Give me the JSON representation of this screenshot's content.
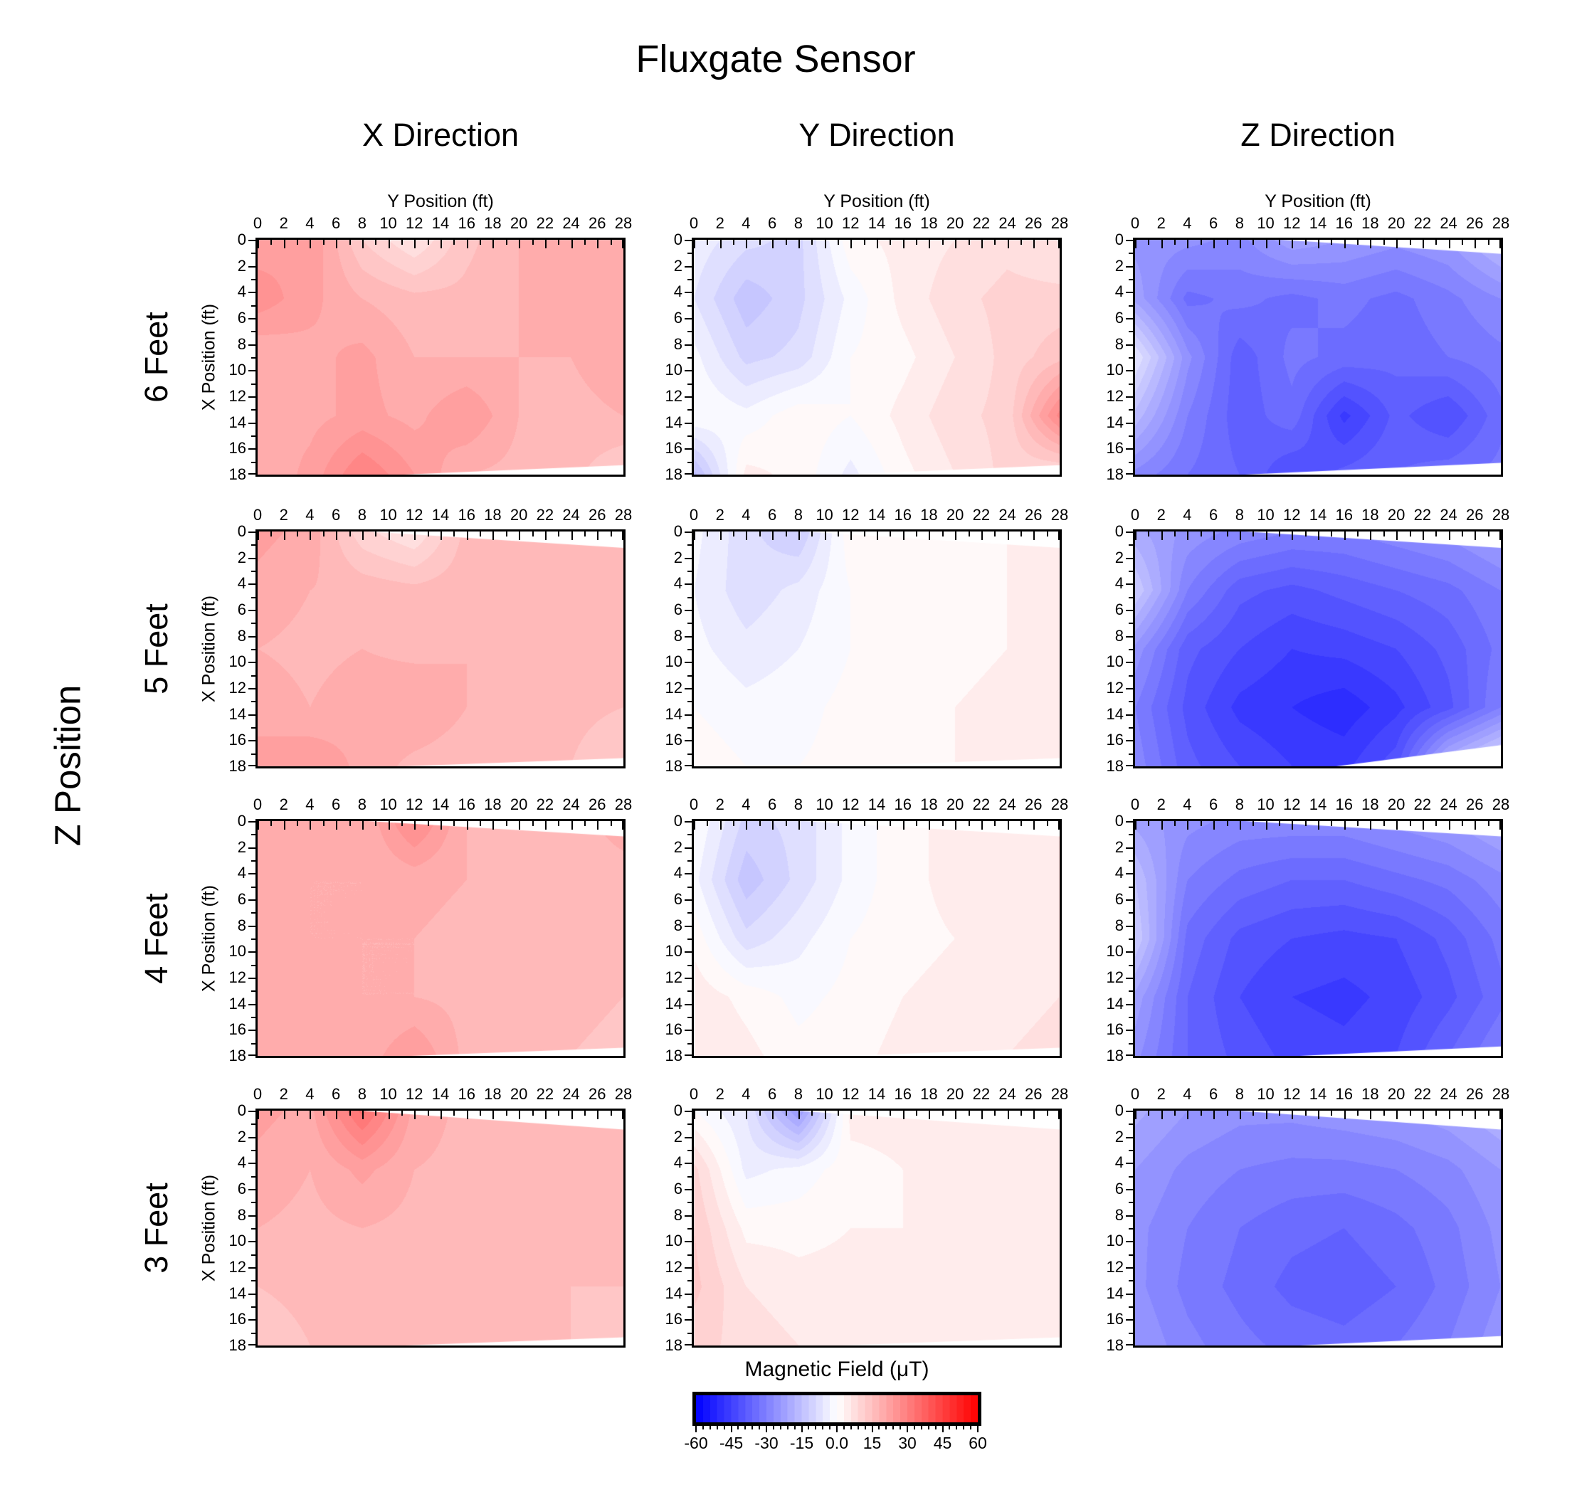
{
  "title": "Fluxgate Sensor",
  "column_headers": [
    "X Direction",
    "Y Direction",
    "Z Direction"
  ],
  "row_labels": [
    "6 Feet",
    "5 Feet",
    "4 Feet",
    "3 Feet"
  ],
  "z_axis_label": "Z Position",
  "top_axis": {
    "title": "Y Position (ft)",
    "tick_labels": [
      "0",
      "2",
      "4",
      "6",
      "8",
      "10",
      "12",
      "14",
      "16",
      "18",
      "20",
      "22",
      "24",
      "26",
      "28"
    ],
    "range": [
      0,
      28
    ],
    "minor_step_ft": 1
  },
  "left_axis": {
    "title": "X Position (ft)",
    "tick_labels": [
      "0",
      "2",
      "4",
      "6",
      "8",
      "10",
      "12",
      "14",
      "16",
      "18"
    ],
    "range": [
      0,
      18
    ],
    "minor_step_ft": 1
  },
  "colorbar": {
    "title": "Magnetic Field (μT)",
    "tick_labels": [
      "-60",
      "-45",
      "-30",
      "-15",
      "0.0",
      "15",
      "30",
      "45",
      "60"
    ],
    "tick_values": [
      -60,
      -45,
      -30,
      -15,
      0,
      15,
      30,
      45,
      60
    ],
    "range": [
      -60,
      60
    ],
    "band_step_uT": 3,
    "minor_tick_step_uT": 3,
    "colors": {
      "negative": "#0000ff",
      "zero": "#ffffff",
      "positive": "#ff0000"
    }
  },
  "chart_data": {
    "type": "heatmap",
    "value_units": "μT",
    "grid_y_positions_ft": [
      0,
      4,
      8,
      12,
      16,
      20,
      24,
      28
    ],
    "grid_x_positions_ft": [
      0,
      4.5,
      9,
      13.5,
      18
    ],
    "note": "values_uT rows correspond to X Position 0-18 ft (top to bottom), columns to Y Position 0-28 ft (left to right); estimated from contour colors",
    "panels": [
      {
        "row": "6 Feet",
        "column": "X Direction",
        "values_uT": [
          [
            22,
            24,
            12,
            6,
            14,
            18,
            20,
            18
          ],
          [
            26,
            22,
            18,
            16,
            16,
            18,
            20,
            18
          ],
          [
            18,
            20,
            22,
            18,
            18,
            18,
            18,
            20
          ],
          [
            20,
            20,
            22,
            20,
            24,
            18,
            17,
            18
          ],
          [
            18,
            22,
            30,
            24,
            18,
            17,
            16,
            12
          ]
        ],
        "mask_top": null,
        "mask_bottom": [
          0.4,
          0.04
        ]
      },
      {
        "row": "6 Feet",
        "column": "Y Direction",
        "values_uT": [
          [
            -4,
            -8,
            -10,
            2,
            4,
            6,
            8,
            6
          ],
          [
            -6,
            -14,
            -10,
            -2,
            4,
            8,
            10,
            10
          ],
          [
            -2,
            -10,
            -8,
            0,
            2,
            6,
            10,
            14
          ],
          [
            0,
            -2,
            2,
            0,
            4,
            8,
            10,
            28
          ],
          [
            -16,
            4,
            2,
            -4,
            2,
            6,
            10,
            8
          ]
        ],
        "mask_top": null,
        "mask_bottom": [
          0.4,
          0.04
        ]
      },
      {
        "row": "6 Feet",
        "column": "Z Direction",
        "values_uT": [
          [
            -25,
            -26,
            -28,
            -22,
            -24,
            -26,
            -24,
            -16
          ],
          [
            -22,
            -34,
            -32,
            -34,
            -32,
            -34,
            -31,
            -27
          ],
          [
            -6,
            -26,
            -38,
            -32,
            -34,
            -35,
            -33,
            -31
          ],
          [
            -16,
            -30,
            -38,
            -34,
            -46,
            -38,
            -42,
            -34
          ],
          [
            -28,
            -33,
            -36,
            -42,
            -38,
            -36,
            -34,
            -32
          ]
        ],
        "mask_top": [
          0.4,
          0.06
        ],
        "mask_bottom": [
          0.3,
          0.05
        ]
      },
      {
        "row": "5 Feet",
        "column": "X Direction",
        "values_uT": [
          [
            22,
            20,
            10,
            6,
            16,
            18,
            18,
            16
          ],
          [
            20,
            18,
            17,
            16,
            17,
            18,
            17,
            16
          ],
          [
            18,
            17,
            18,
            17,
            18,
            17,
            16,
            16
          ],
          [
            20,
            18,
            20,
            21,
            18,
            17,
            16,
            15
          ],
          [
            22,
            24,
            20,
            17,
            16,
            15,
            15,
            12
          ]
        ],
        "mask_top": [
          0.3,
          0.07
        ],
        "mask_bottom": [
          0.4,
          0.035
        ]
      },
      {
        "row": "5 Feet",
        "column": "Y Direction",
        "values_uT": [
          [
            -2,
            -8,
            -12,
            2,
            1,
            2,
            3,
            4
          ],
          [
            -3,
            -8,
            -5,
            0,
            1,
            2,
            3,
            4
          ],
          [
            -2,
            -5,
            -3,
            0,
            1,
            2,
            3,
            4
          ],
          [
            0,
            -2,
            -1,
            1,
            2,
            3,
            4,
            5
          ],
          [
            2,
            0,
            0,
            1,
            2,
            3,
            4,
            6
          ]
        ],
        "mask_top": [
          0.3,
          0.07
        ],
        "mask_bottom": [
          0.4,
          0.035
        ]
      },
      {
        "row": "5 Feet",
        "column": "Z Direction",
        "values_uT": [
          [
            -20,
            -25,
            -28,
            -30,
            -30,
            -28,
            -26,
            -22
          ],
          [
            -12,
            -30,
            -38,
            -40,
            -38,
            -36,
            -34,
            -30
          ],
          [
            -25,
            -38,
            -42,
            -45,
            -44,
            -42,
            -38,
            -32
          ],
          [
            -30,
            -40,
            -46,
            -48,
            -50,
            -46,
            -40,
            -30
          ],
          [
            -28,
            -38,
            -42,
            -45,
            -46,
            -40,
            -16,
            -6
          ]
        ],
        "mask_top": [
          0.3,
          0.07
        ],
        "mask_bottom": [
          0.55,
          0.09
        ]
      },
      {
        "row": "4 Feet",
        "column": "X Direction",
        "values_uT": [
          [
            20,
            19,
            18,
            28,
            18,
            17,
            17,
            19
          ],
          [
            19,
            18,
            18,
            19,
            18,
            17,
            17,
            17
          ],
          [
            19,
            18,
            18,
            18,
            17,
            17,
            16,
            16
          ],
          [
            19,
            19,
            18,
            18,
            17,
            17,
            16,
            15
          ],
          [
            19,
            20,
            19,
            24,
            17,
            16,
            15,
            14
          ]
        ],
        "mask_top": [
          0.3,
          0.065
        ],
        "mask_bottom": [
          0.42,
          0.035
        ]
      },
      {
        "row": "4 Feet",
        "column": "Y Direction",
        "values_uT": [
          [
            0,
            -10,
            -8,
            -2,
            2,
            4,
            5,
            6
          ],
          [
            -2,
            -14,
            -8,
            -2,
            2,
            4,
            5,
            6
          ],
          [
            2,
            -8,
            -4,
            0,
            2,
            3,
            4,
            6
          ],
          [
            5,
            2,
            -1,
            1,
            3,
            4,
            5,
            6
          ],
          [
            6,
            4,
            1,
            2,
            4,
            5,
            6,
            7
          ]
        ],
        "mask_top": [
          0.3,
          0.065
        ],
        "mask_bottom": [
          0.42,
          0.035
        ]
      },
      {
        "row": "4 Feet",
        "column": "Z Direction",
        "values_uT": [
          [
            -22,
            -26,
            -28,
            -28,
            -28,
            -26,
            -24,
            -20
          ],
          [
            -15,
            -30,
            -34,
            -36,
            -36,
            -34,
            -32,
            -28
          ],
          [
            -12,
            -34,
            -40,
            -42,
            -43,
            -42,
            -38,
            -32
          ],
          [
            -22,
            -36,
            -42,
            -45,
            -46,
            -44,
            -40,
            -34
          ],
          [
            -26,
            -36,
            -40,
            -43,
            -44,
            -42,
            -36,
            -30
          ]
        ],
        "mask_top": [
          0.3,
          0.065
        ],
        "mask_bottom": [
          0.45,
          0.04
        ]
      },
      {
        "row": "3 Feet",
        "column": "X Direction",
        "values_uT": [
          [
            22,
            20,
            34,
            20,
            17,
            17,
            17,
            18
          ],
          [
            20,
            18,
            22,
            18,
            17,
            17,
            17,
            17
          ],
          [
            18,
            17,
            18,
            17,
            17,
            16,
            16,
            16
          ],
          [
            15,
            16,
            17,
            17,
            16,
            16,
            15,
            15
          ],
          [
            13,
            15,
            17,
            16,
            16,
            15,
            15,
            14
          ]
        ],
        "mask_top": [
          0.28,
          0.08
        ],
        "mask_bottom": [
          0.4,
          0.035
        ]
      },
      {
        "row": "3 Feet",
        "column": "Y Direction",
        "values_uT": [
          [
            0,
            -6,
            -24,
            4,
            4,
            5,
            5,
            6
          ],
          [
            10,
            -4,
            -2,
            2,
            3,
            4,
            4,
            5
          ],
          [
            12,
            2,
            2,
            3,
            3,
            4,
            4,
            5
          ],
          [
            13,
            6,
            4,
            4,
            3,
            4,
            4,
            5
          ],
          [
            10,
            8,
            6,
            5,
            4,
            4,
            4,
            5
          ]
        ],
        "mask_top": [
          0.28,
          0.08
        ],
        "mask_bottom": [
          0.4,
          0.035
        ]
      },
      {
        "row": "3 Feet",
        "column": "Z Direction",
        "values_uT": [
          [
            -20,
            -24,
            -26,
            -26,
            -25,
            -24,
            -22,
            -18
          ],
          [
            -24,
            -28,
            -30,
            -31,
            -31,
            -30,
            -28,
            -24
          ],
          [
            -26,
            -30,
            -33,
            -35,
            -36,
            -34,
            -31,
            -26
          ],
          [
            -26,
            -31,
            -34,
            -37,
            -38,
            -36,
            -32,
            -27
          ],
          [
            -24,
            -29,
            -32,
            -34,
            -35,
            -33,
            -30,
            -25
          ]
        ],
        "mask_top": [
          0.28,
          0.08
        ],
        "mask_bottom": [
          0.45,
          0.04
        ]
      }
    ]
  }
}
